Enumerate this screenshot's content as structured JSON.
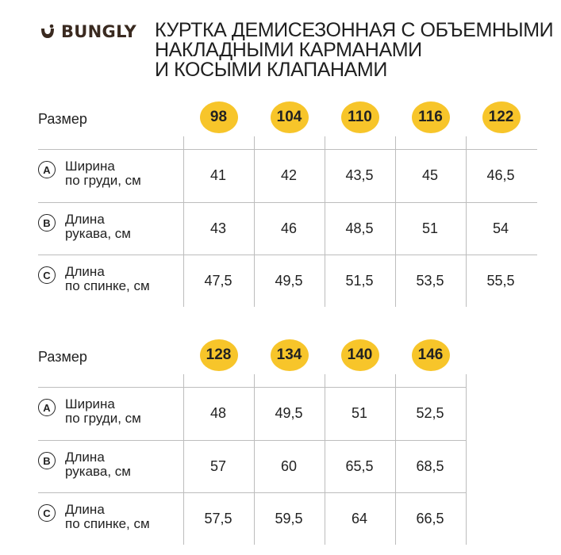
{
  "brand": {
    "name": "BUNGLY",
    "logo_icon": "bungly-smile-logo-icon"
  },
  "title_lines": [
    "КУРТКА ДЕМИСЕЗОННАЯ С ОБЪЕМНЫМИ",
    "НАКЛАДНЫМИ КАРМАНАМИ",
    "И КОСЫМИ КЛАПАНАМИ"
  ],
  "accent_color": "#f7c52a",
  "tables": [
    {
      "size_label": "Размер",
      "sizes": [
        "98",
        "104",
        "110",
        "116",
        "122"
      ],
      "rows": [
        {
          "letter": "A",
          "label_lines": [
            "Ширина",
            "по груди, см"
          ],
          "values": [
            "41",
            "42",
            "43,5",
            "45",
            "46,5"
          ]
        },
        {
          "letter": "B",
          "label_lines": [
            "Длина",
            "рукава, см"
          ],
          "values": [
            "43",
            "46",
            "48,5",
            "51",
            "54"
          ]
        },
        {
          "letter": "C",
          "label_lines": [
            "Длина",
            "по спинке, см"
          ],
          "values": [
            "47,5",
            "49,5",
            "51,5",
            "53,5",
            "55,5"
          ]
        }
      ]
    },
    {
      "size_label": "Размер",
      "sizes": [
        "128",
        "134",
        "140",
        "146"
      ],
      "rows": [
        {
          "letter": "A",
          "label_lines": [
            "Ширина",
            "по груди, см"
          ],
          "values": [
            "48",
            "49,5",
            "51",
            "52,5"
          ]
        },
        {
          "letter": "B",
          "label_lines": [
            "Длина",
            "рукава, см"
          ],
          "values": [
            "57",
            "60",
            "65,5",
            "68,5"
          ]
        },
        {
          "letter": "C",
          "label_lines": [
            "Длина",
            "по спинке, см"
          ],
          "values": [
            "57,5",
            "59,5",
            "64",
            "66,5"
          ]
        }
      ]
    }
  ]
}
